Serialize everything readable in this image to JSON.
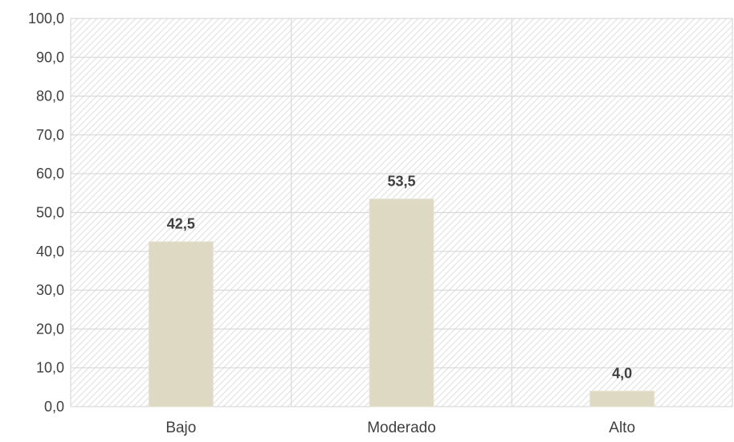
{
  "chart_data": {
    "type": "bar",
    "title": "",
    "xlabel": "",
    "ylabel": "",
    "categories": [
      "Bajo",
      "Moderado",
      "Alto"
    ],
    "values": [
      42.5,
      53.5,
      4.0
    ],
    "data_labels": [
      "42,5",
      "53,5",
      "4,0"
    ],
    "ylim": [
      0,
      100
    ],
    "y_ticks": [
      0,
      10,
      20,
      30,
      40,
      50,
      60,
      70,
      80,
      90,
      100
    ],
    "y_tick_labels": [
      "0,0",
      "10,0",
      "20,0",
      "30,0",
      "40,0",
      "50,0",
      "60,0",
      "70,0",
      "80,0",
      "90,0",
      "100,0"
    ],
    "grid": true,
    "legend": "none",
    "colors": {
      "bar": "#ddd9c3",
      "bar_border": "#e8e5d6",
      "grid": "#d9d9d9",
      "hatch": "#e3e3e3",
      "text": "#404040"
    }
  }
}
